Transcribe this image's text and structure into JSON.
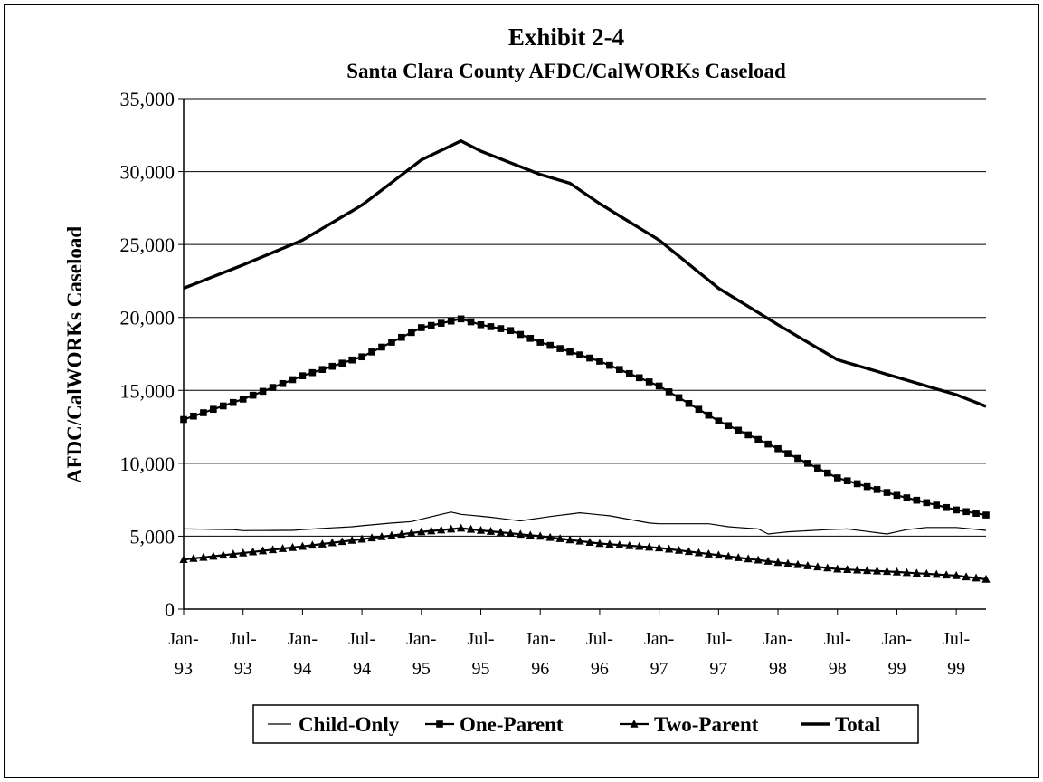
{
  "chart_data": {
    "type": "line",
    "title": "Exhibit 2-4",
    "subtitle": "Santa Clara County AFDC/CalWORKs Caseload",
    "ylabel": "AFDC/CalWORKs Caseload",
    "xlabel": "",
    "ylim": [
      0,
      35000
    ],
    "yticks": [
      0,
      5000,
      10000,
      15000,
      20000,
      25000,
      30000,
      35000
    ],
    "ytick_labels": [
      "0",
      "5,000",
      "10,000",
      "15,000",
      "20,000",
      "25,000",
      "30,000",
      "35,000"
    ],
    "x_start": "1993-01",
    "x_end": "1999-10",
    "xtick_labels": [
      [
        "Jan-",
        "93"
      ],
      [
        "Jul-",
        "93"
      ],
      [
        "Jan-",
        "94"
      ],
      [
        "Jul-",
        "94"
      ],
      [
        "Jan-",
        "95"
      ],
      [
        "Jul-",
        "95"
      ],
      [
        "Jan-",
        "96"
      ],
      [
        "Jul-",
        "96"
      ],
      [
        "Jan-",
        "97"
      ],
      [
        "Jul-",
        "97"
      ],
      [
        "Jan-",
        "98"
      ],
      [
        "Jul-",
        "98"
      ],
      [
        "Jan-",
        "99"
      ],
      [
        "Jul-",
        "99"
      ]
    ],
    "grid": "horizontal",
    "legend": "bottom",
    "series": [
      {
        "name": "Child-Only",
        "marker": "none",
        "line": "thin",
        "points": [
          [
            "1993-01",
            5500
          ],
          [
            "1993-06",
            5450
          ],
          [
            "1993-07",
            5380
          ],
          [
            "1993-12",
            5400
          ],
          [
            "1994-01",
            5450
          ],
          [
            "1994-06",
            5650
          ],
          [
            "1994-10",
            5900
          ],
          [
            "1994-12",
            6000
          ],
          [
            "1995-03",
            6500
          ],
          [
            "1995-04",
            6650
          ],
          [
            "1995-05",
            6500
          ],
          [
            "1995-08",
            6300
          ],
          [
            "1995-11",
            6050
          ],
          [
            "1996-02",
            6350
          ],
          [
            "1996-05",
            6600
          ],
          [
            "1996-08",
            6400
          ],
          [
            "1996-12",
            5900
          ],
          [
            "1997-01",
            5850
          ],
          [
            "1997-06",
            5850
          ],
          [
            "1997-08",
            5650
          ],
          [
            "1997-11",
            5500
          ],
          [
            "1997-12",
            5150
          ],
          [
            "1998-02",
            5300
          ],
          [
            "1998-06",
            5450
          ],
          [
            "1998-08",
            5500
          ],
          [
            "1998-12",
            5150
          ],
          [
            "1999-02",
            5450
          ],
          [
            "1999-04",
            5600
          ],
          [
            "1999-07",
            5600
          ],
          [
            "1999-10",
            5400
          ]
        ]
      },
      {
        "name": "One-Parent",
        "marker": "square",
        "line": "medium",
        "points": [
          [
            "1993-01",
            13000
          ],
          [
            "1993-07",
            14400
          ],
          [
            "1994-01",
            16000
          ],
          [
            "1994-07",
            17300
          ],
          [
            "1994-10",
            18300
          ],
          [
            "1995-01",
            19300
          ],
          [
            "1995-05",
            19900
          ],
          [
            "1995-07",
            19500
          ],
          [
            "1995-10",
            19100
          ],
          [
            "1996-01",
            18300
          ],
          [
            "1996-07",
            17000
          ],
          [
            "1997-01",
            15300
          ],
          [
            "1997-07",
            12900
          ],
          [
            "1998-01",
            11000
          ],
          [
            "1998-07",
            9000
          ],
          [
            "1999-01",
            7800
          ],
          [
            "1999-07",
            6800
          ],
          [
            "1999-10",
            6450
          ]
        ]
      },
      {
        "name": "Two-Parent",
        "marker": "triangle",
        "line": "medium",
        "points": [
          [
            "1993-01",
            3400
          ],
          [
            "1993-07",
            3850
          ],
          [
            "1994-01",
            4300
          ],
          [
            "1994-07",
            4800
          ],
          [
            "1995-01",
            5300
          ],
          [
            "1995-05",
            5550
          ],
          [
            "1995-07",
            5400
          ],
          [
            "1996-01",
            5000
          ],
          [
            "1996-07",
            4500
          ],
          [
            "1997-01",
            4200
          ],
          [
            "1997-07",
            3700
          ],
          [
            "1998-01",
            3200
          ],
          [
            "1998-07",
            2750
          ],
          [
            "1999-01",
            2550
          ],
          [
            "1999-07",
            2300
          ],
          [
            "1999-10",
            2050
          ]
        ]
      },
      {
        "name": "Total",
        "marker": "none",
        "line": "thick",
        "points": [
          [
            "1993-01",
            22000
          ],
          [
            "1993-07",
            23600
          ],
          [
            "1994-01",
            25300
          ],
          [
            "1994-07",
            27700
          ],
          [
            "1995-01",
            30800
          ],
          [
            "1995-05",
            32100
          ],
          [
            "1995-07",
            31400
          ],
          [
            "1996-01",
            29800
          ],
          [
            "1996-04",
            29200
          ],
          [
            "1996-07",
            27800
          ],
          [
            "1997-01",
            25300
          ],
          [
            "1997-07",
            22000
          ],
          [
            "1998-01",
            19500
          ],
          [
            "1998-07",
            17100
          ],
          [
            "1998-12",
            16100
          ],
          [
            "1999-07",
            14700
          ],
          [
            "1999-10",
            13900
          ]
        ]
      }
    ]
  }
}
